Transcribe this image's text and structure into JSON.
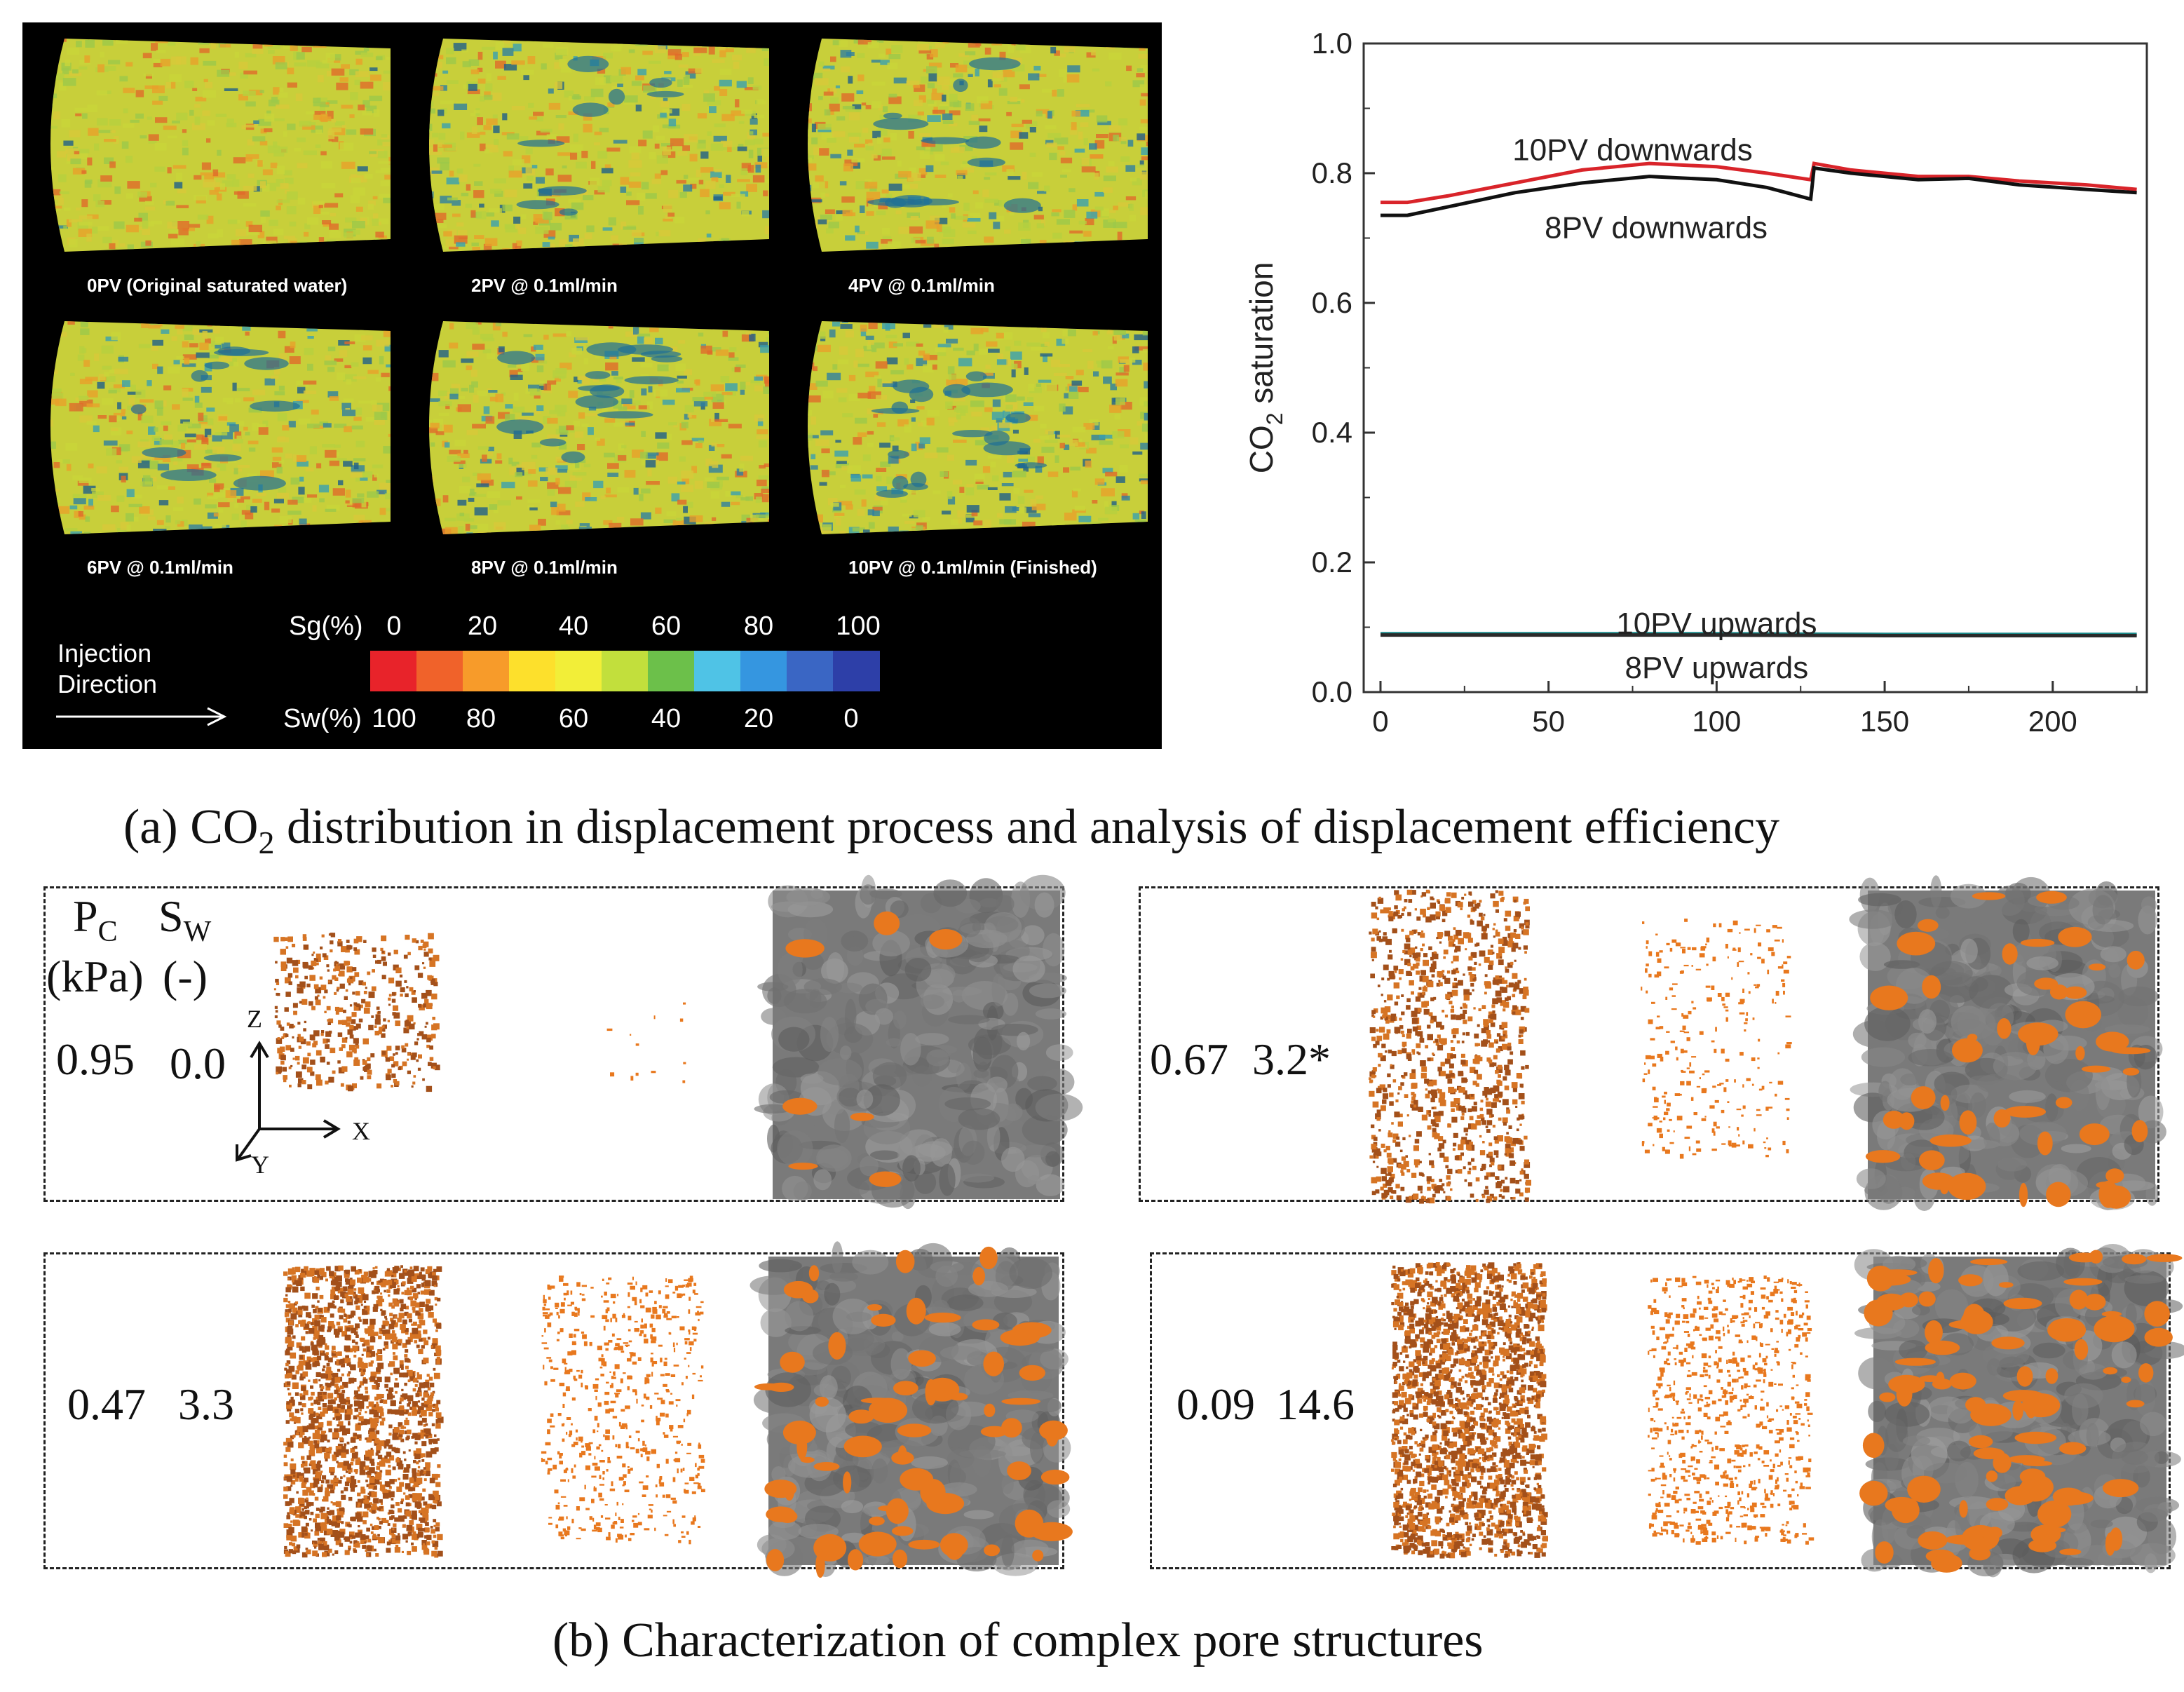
{
  "panel_a": {
    "caption_prefix": "(a) CO",
    "caption_sub": "2",
    "caption_suffix": " distribution in displacement process and analysis of displacement efficiency",
    "ct_images": [
      {
        "label": "0PV (Original saturated water)",
        "blue_level": 0.05
      },
      {
        "label": "2PV @ 0.1ml/min",
        "blue_level": 0.3
      },
      {
        "label": "4PV @ 0.1ml/min",
        "blue_level": 0.4
      },
      {
        "label": "6PV @ 0.1ml/min",
        "blue_level": 0.35
      },
      {
        "label": "8PV @ 0.1ml/min",
        "blue_level": 0.45
      },
      {
        "label": "10PV @ 0.1ml/min (Finished)",
        "blue_level": 0.55
      }
    ],
    "injection_line1": "Injection",
    "injection_line2": "Direction",
    "sg_label": "Sg(%)",
    "sw_label": "Sw(%)",
    "sg_ticks": [
      "0",
      "20",
      "40",
      "60",
      "80",
      "100"
    ],
    "sw_ticks": [
      "100",
      "80",
      "60",
      "40",
      "20",
      "0"
    ],
    "colorbar_colors": [
      "#e8232a",
      "#f0622a",
      "#f79b2a",
      "#fde02c",
      "#f2ee38",
      "#c2df3c",
      "#6cc04a",
      "#4fc3e6",
      "#3596e0",
      "#3a66c4",
      "#2d3fa8"
    ]
  },
  "chart_data": {
    "type": "line",
    "xlabel": "",
    "ylabel_main": "CO",
    "ylabel_sub": "2",
    "ylabel_rest": " saturation",
    "xlim": [
      -5,
      228
    ],
    "ylim": [
      0.0,
      1.0
    ],
    "xticks": [
      0,
      50,
      100,
      150,
      200
    ],
    "yticks": [
      "0.0",
      "0.2",
      "0.4",
      "0.6",
      "0.8",
      "1.0"
    ],
    "series": [
      {
        "name": "10PV downwards",
        "color": "#d9242a",
        "x": [
          0,
          8,
          20,
          40,
          60,
          80,
          100,
          115,
          128,
          129,
          140,
          160,
          175,
          190,
          210,
          225
        ],
        "y": [
          0.755,
          0.755,
          0.765,
          0.785,
          0.805,
          0.815,
          0.81,
          0.8,
          0.79,
          0.815,
          0.805,
          0.795,
          0.795,
          0.788,
          0.782,
          0.775
        ]
      },
      {
        "name": "8PV downwards",
        "color": "#111111",
        "x": [
          0,
          8,
          20,
          40,
          60,
          80,
          100,
          115,
          128,
          129,
          140,
          160,
          175,
          190,
          210,
          225
        ],
        "y": [
          0.735,
          0.735,
          0.748,
          0.77,
          0.785,
          0.795,
          0.79,
          0.778,
          0.76,
          0.808,
          0.8,
          0.79,
          0.792,
          0.782,
          0.775,
          0.77
        ]
      },
      {
        "name": "10PV upwards",
        "color": "#1a8a8a",
        "x": [
          0,
          50,
          100,
          150,
          200,
          225
        ],
        "y": [
          0.09,
          0.09,
          0.09,
          0.089,
          0.089,
          0.089
        ]
      },
      {
        "name": "8PV upwards",
        "color": "#2a2a2a",
        "x": [
          0,
          50,
          100,
          150,
          200,
          225
        ],
        "y": [
          0.088,
          0.088,
          0.088,
          0.087,
          0.087,
          0.087
        ]
      }
    ],
    "annotations": [
      "10PV downwards",
      "8PV downwards",
      "10PV upwards",
      "8PV upwards"
    ]
  },
  "panel_b": {
    "caption": "(b) Characterization of complex pore structures",
    "pc_letter": "P",
    "pc_sub": "C",
    "sw_letter": "S",
    "sw_sub": "W",
    "pc_unit": "(kPa)",
    "sw_unit": "(-)",
    "axis_z": "Z",
    "axis_x": "X",
    "axis_y": "Y",
    "cases": [
      {
        "pc": "0.95",
        "sw": "0.0",
        "fill_level": 0.05
      },
      {
        "pc": "0.67",
        "sw": "3.2*",
        "fill_level": 0.35
      },
      {
        "pc": "0.47",
        "sw": "3.3",
        "fill_level": 0.5
      },
      {
        "pc": "0.09",
        "sw": "14.6",
        "fill_level": 0.65
      }
    ],
    "co2_color": "#e8781e",
    "sem_gray": "#7a7a7a"
  }
}
